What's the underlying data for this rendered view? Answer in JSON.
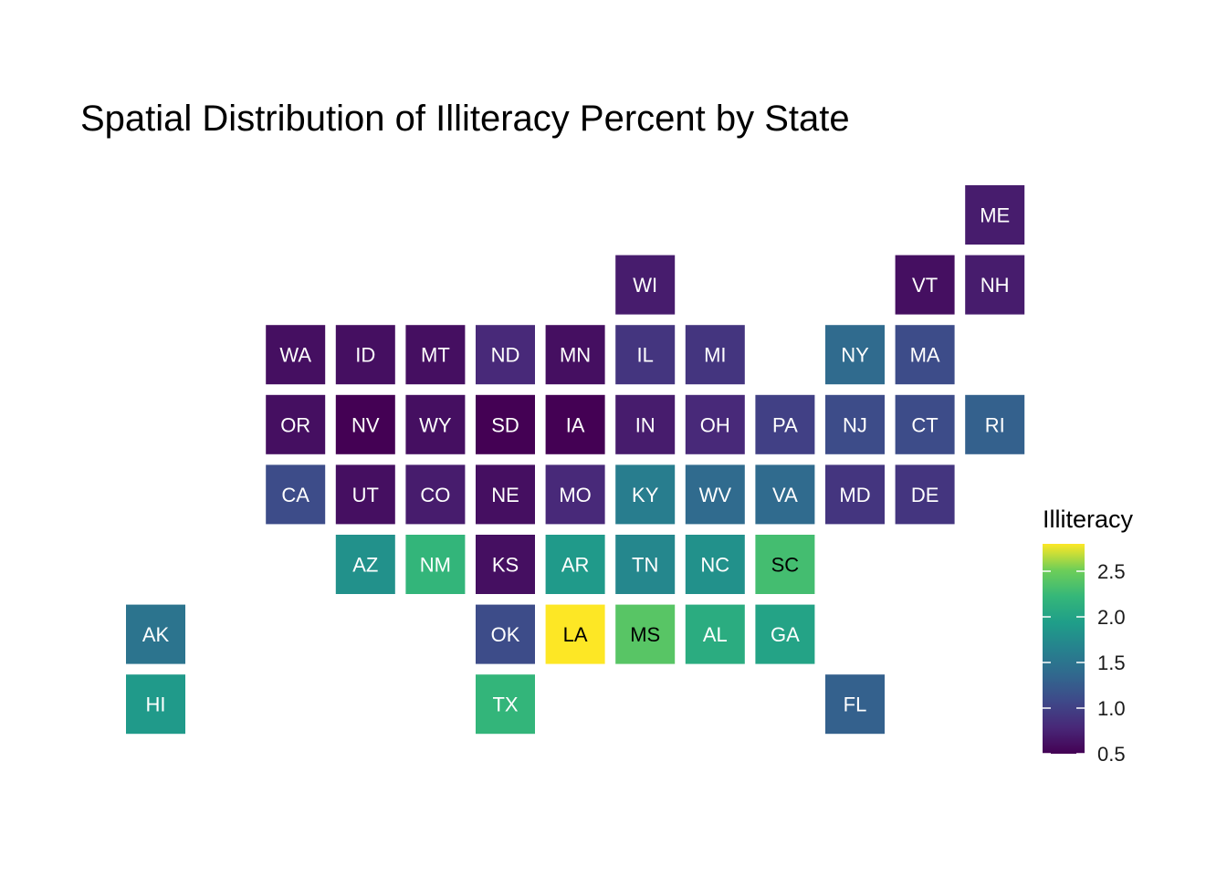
{
  "chart_data": {
    "type": "heatmap",
    "title": "Spatial Distribution of Illiteracy Percent by State",
    "legend": {
      "title": "Illiteracy",
      "position": "right",
      "ticks": [
        "0.5",
        "1.0",
        "1.5",
        "2.0",
        "2.5"
      ],
      "range": [
        0.5,
        2.8
      ]
    },
    "colorscale": "viridis",
    "tiles": [
      {
        "state": "ME",
        "col": 12,
        "row": 0,
        "value": 0.7
      },
      {
        "state": "WI",
        "col": 7,
        "row": 1,
        "value": 0.7
      },
      {
        "state": "VT",
        "col": 11,
        "row": 1,
        "value": 0.6
      },
      {
        "state": "NH",
        "col": 12,
        "row": 1,
        "value": 0.7
      },
      {
        "state": "WA",
        "col": 2,
        "row": 2,
        "value": 0.6
      },
      {
        "state": "ID",
        "col": 3,
        "row": 2,
        "value": 0.6
      },
      {
        "state": "MT",
        "col": 4,
        "row": 2,
        "value": 0.6
      },
      {
        "state": "ND",
        "col": 5,
        "row": 2,
        "value": 0.8
      },
      {
        "state": "MN",
        "col": 6,
        "row": 2,
        "value": 0.6
      },
      {
        "state": "IL",
        "col": 7,
        "row": 2,
        "value": 0.9
      },
      {
        "state": "MI",
        "col": 8,
        "row": 2,
        "value": 0.9
      },
      {
        "state": "NY",
        "col": 10,
        "row": 2,
        "value": 1.4
      },
      {
        "state": "MA",
        "col": 11,
        "row": 2,
        "value": 1.1
      },
      {
        "state": "OR",
        "col": 2,
        "row": 3,
        "value": 0.6
      },
      {
        "state": "NV",
        "col": 3,
        "row": 3,
        "value": 0.5
      },
      {
        "state": "WY",
        "col": 4,
        "row": 3,
        "value": 0.6
      },
      {
        "state": "SD",
        "col": 5,
        "row": 3,
        "value": 0.5
      },
      {
        "state": "IA",
        "col": 6,
        "row": 3,
        "value": 0.5
      },
      {
        "state": "IN",
        "col": 7,
        "row": 3,
        "value": 0.7
      },
      {
        "state": "OH",
        "col": 8,
        "row": 3,
        "value": 0.8
      },
      {
        "state": "PA",
        "col": 9,
        "row": 3,
        "value": 1.0
      },
      {
        "state": "NJ",
        "col": 10,
        "row": 3,
        "value": 1.1
      },
      {
        "state": "CT",
        "col": 11,
        "row": 3,
        "value": 1.1
      },
      {
        "state": "RI",
        "col": 12,
        "row": 3,
        "value": 1.3
      },
      {
        "state": "CA",
        "col": 2,
        "row": 4,
        "value": 1.1
      },
      {
        "state": "UT",
        "col": 3,
        "row": 4,
        "value": 0.6
      },
      {
        "state": "CO",
        "col": 4,
        "row": 4,
        "value": 0.7
      },
      {
        "state": "NE",
        "col": 5,
        "row": 4,
        "value": 0.6
      },
      {
        "state": "MO",
        "col": 6,
        "row": 4,
        "value": 0.8
      },
      {
        "state": "KY",
        "col": 7,
        "row": 4,
        "value": 1.6
      },
      {
        "state": "WV",
        "col": 8,
        "row": 4,
        "value": 1.4
      },
      {
        "state": "VA",
        "col": 9,
        "row": 4,
        "value": 1.4
      },
      {
        "state": "MD",
        "col": 10,
        "row": 4,
        "value": 0.9
      },
      {
        "state": "DE",
        "col": 11,
        "row": 4,
        "value": 0.9
      },
      {
        "state": "AZ",
        "col": 3,
        "row": 5,
        "value": 1.8
      },
      {
        "state": "NM",
        "col": 4,
        "row": 5,
        "value": 2.2
      },
      {
        "state": "KS",
        "col": 5,
        "row": 5,
        "value": 0.6
      },
      {
        "state": "AR",
        "col": 6,
        "row": 5,
        "value": 1.9
      },
      {
        "state": "TN",
        "col": 7,
        "row": 5,
        "value": 1.7
      },
      {
        "state": "NC",
        "col": 8,
        "row": 5,
        "value": 1.8
      },
      {
        "state": "SC",
        "col": 9,
        "row": 5,
        "value": 2.3
      },
      {
        "state": "AK",
        "col": 0,
        "row": 6,
        "value": 1.5
      },
      {
        "state": "OK",
        "col": 5,
        "row": 6,
        "value": 1.1
      },
      {
        "state": "LA",
        "col": 6,
        "row": 6,
        "value": 2.8
      },
      {
        "state": "MS",
        "col": 7,
        "row": 6,
        "value": 2.4
      },
      {
        "state": "AL",
        "col": 8,
        "row": 6,
        "value": 2.1
      },
      {
        "state": "GA",
        "col": 9,
        "row": 6,
        "value": 2.0
      },
      {
        "state": "HI",
        "col": 0,
        "row": 7,
        "value": 1.9
      },
      {
        "state": "TX",
        "col": 5,
        "row": 7,
        "value": 2.2
      },
      {
        "state": "FL",
        "col": 10,
        "row": 7,
        "value": 1.3
      }
    ]
  }
}
